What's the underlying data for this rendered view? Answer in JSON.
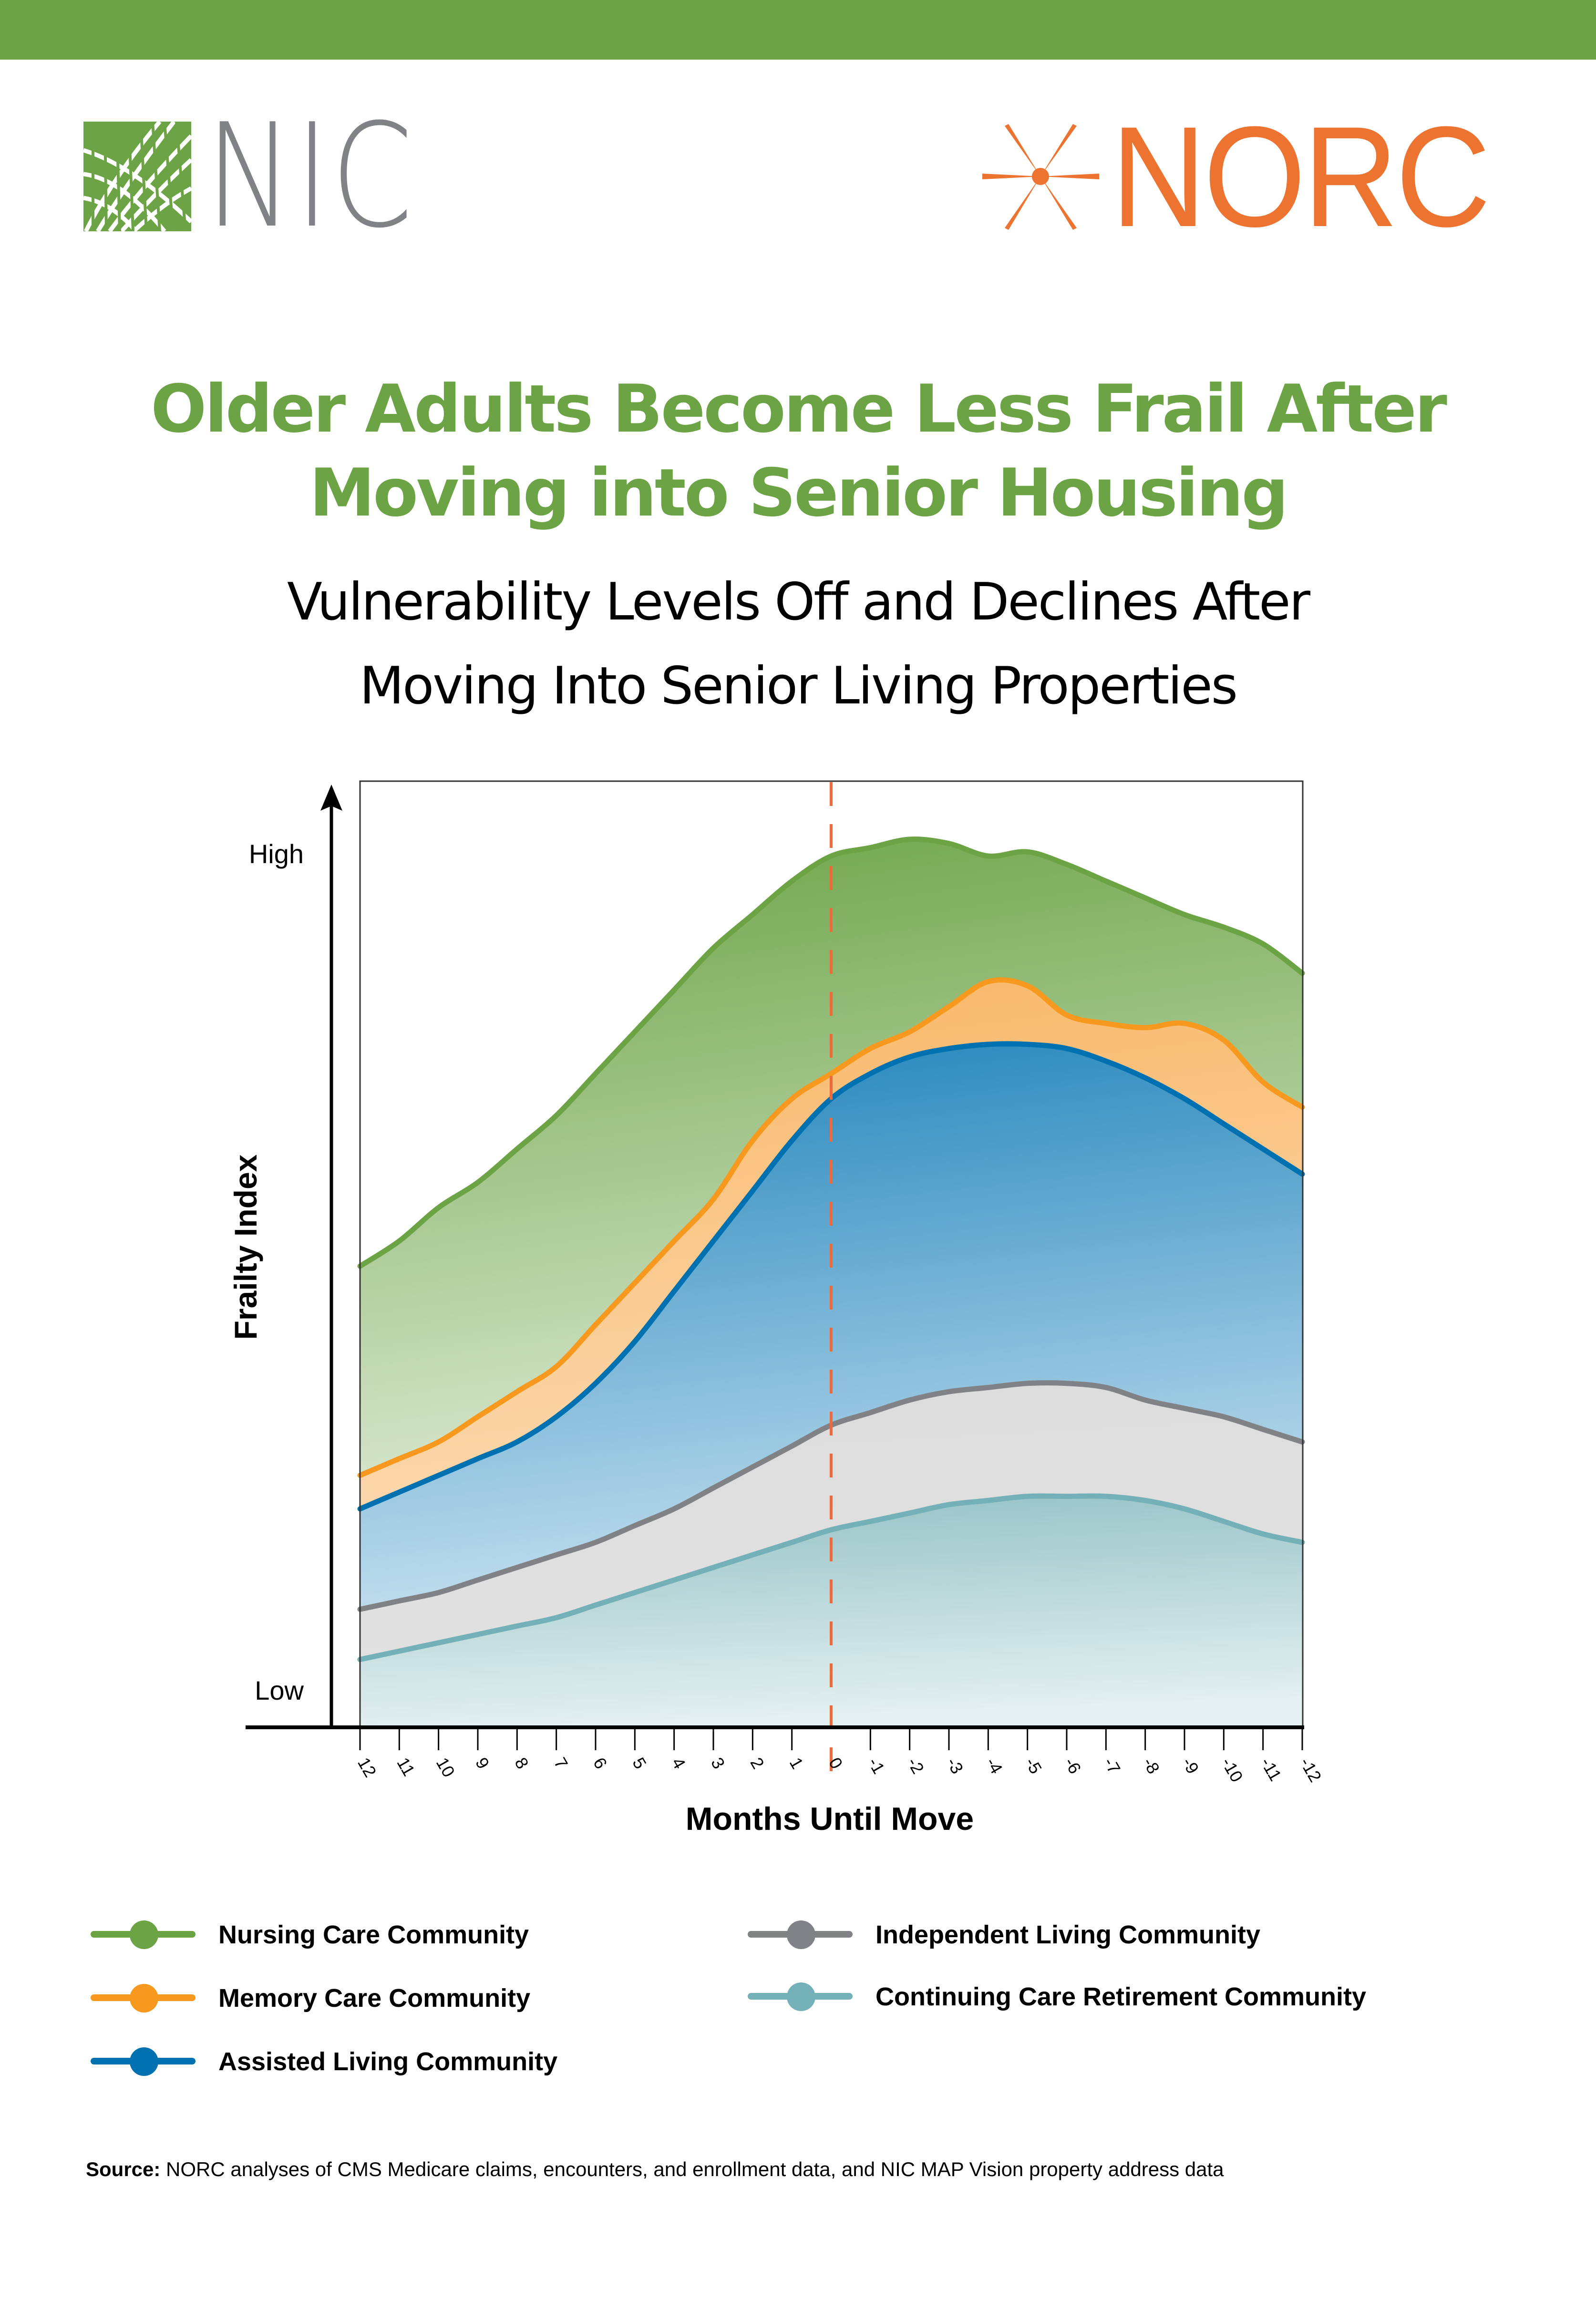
{
  "header": {
    "bar_color": "#6ba345",
    "logos": [
      {
        "name": "NIC",
        "text": "NIC",
        "mark_color": "#6ba345",
        "text_color": "#818285"
      },
      {
        "name": "NORC",
        "text": "NORC",
        "color": "#ed7331"
      }
    ]
  },
  "title": {
    "line1": "Older Adults Become Less Frail After",
    "line2": "Moving into Senior Housing",
    "color": "#6ba345"
  },
  "subtitle": {
    "line1": "Vulnerability Levels Off and Declines After",
    "line2": "Moving Into Senior Living Properties"
  },
  "axes": {
    "y_title": "Frailty Index",
    "y_high": "High",
    "y_low": "Low",
    "x_title": "Months Until Move",
    "move_marker_color": "#ef6a3a"
  },
  "legend": [
    {
      "label": "Nursing Care Community",
      "color": "#6ba345"
    },
    {
      "label": "Memory Care Community",
      "color": "#f7991e"
    },
    {
      "label": "Assisted Living Community",
      "color": "#0071b0"
    },
    {
      "label": "Independent Living Community",
      "color": "#818285"
    },
    {
      "label": "Continuing Care Retirement Community",
      "color": "#73b0b7"
    }
  ],
  "source": {
    "label": "Source:",
    "text": " NORC analyses of CMS Medicare claims, encounters, and enrollment data, and NIC MAP Vision property address data"
  },
  "chart_data": {
    "type": "area",
    "title": "Older Adults Become Less Frail After Moving into Senior Housing",
    "subtitle": "Vulnerability Levels Off and Declines After Moving Into Senior Living Properties",
    "xlabel": "Months Until Move",
    "ylabel": "Frailty Index",
    "y_tick_labels": [
      "Low",
      "High"
    ],
    "y_scale_note": "Relative index, 0 = Low, 100 = High (no numeric ticks shown)",
    "ylim": [
      -4,
      110
    ],
    "categories": [
      "12",
      "11",
      "10",
      "9",
      "8",
      "7",
      "6",
      "5",
      "4",
      "3",
      "2",
      "1",
      "0",
      "-1",
      "-2",
      "-3",
      "-4",
      "-5",
      "-6",
      "-7",
      "-8",
      "-9",
      "-10",
      "-11",
      "-12"
    ],
    "move_marker_at": "0",
    "grid": false,
    "legend_position": "bottom",
    "series": [
      {
        "name": "Nursing Care Community",
        "color": "#6ba345",
        "values": [
          51,
          54,
          58,
          61,
          65,
          69,
          74,
          79,
          84,
          89,
          93,
          97,
          100,
          101,
          102,
          101.5,
          100,
          100.5,
          99,
          97,
          95,
          93,
          91.5,
          89.5,
          86
        ]
      },
      {
        "name": "Memory Care Community",
        "color": "#f7991e",
        "values": [
          26,
          28,
          30,
          33,
          36,
          39,
          44,
          49,
          54,
          59,
          66,
          71,
          74,
          77,
          79,
          82,
          85,
          84.5,
          81,
          80,
          79.5,
          80,
          78,
          73,
          70
        ]
      },
      {
        "name": "Assisted Living Community",
        "color": "#0071b0",
        "values": [
          22,
          24,
          26,
          28,
          30,
          33,
          37,
          42,
          48,
          54,
          60,
          66,
          71,
          74,
          76,
          77,
          77.5,
          77.5,
          77,
          75.5,
          73.5,
          71,
          68,
          65,
          62
        ]
      },
      {
        "name": "Independent Living Community",
        "color": "#818285",
        "values": [
          10,
          11,
          12,
          13.5,
          15,
          16.5,
          18,
          20,
          22,
          24.5,
          27,
          29.5,
          32,
          33.5,
          35,
          36,
          36.5,
          37,
          37,
          36.5,
          35,
          34,
          33,
          31.5,
          30
        ]
      },
      {
        "name": "Continuing Care Retirement Community",
        "color": "#73b0b7",
        "values": [
          4,
          5,
          6,
          7,
          8,
          9,
          10.5,
          12,
          13.5,
          15,
          16.5,
          18,
          19.5,
          20.5,
          21.5,
          22.5,
          23,
          23.5,
          23.5,
          23.5,
          23,
          22,
          20.5,
          19,
          18
        ]
      }
    ]
  }
}
